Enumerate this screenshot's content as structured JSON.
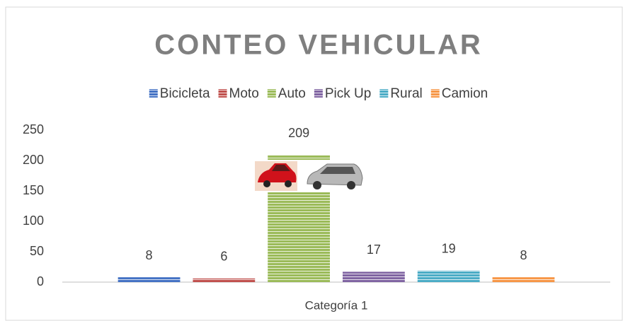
{
  "chart_data": {
    "type": "bar",
    "title": "CONTEO VEHICULAR",
    "categories": [
      "Categoría 1"
    ],
    "series": [
      {
        "name": "Bicicleta",
        "color": "#4472c4",
        "values": [
          8
        ]
      },
      {
        "name": "Moto",
        "color": "#c0504d",
        "values": [
          6
        ]
      },
      {
        "name": "Auto",
        "color": "#9bbb59",
        "values": [
          209
        ]
      },
      {
        "name": "Pick Up",
        "color": "#8064a2",
        "values": [
          17
        ]
      },
      {
        "name": "Rural",
        "color": "#4bacc6",
        "values": [
          19
        ]
      },
      {
        "name": "Camion",
        "color": "#f79646",
        "values": [
          8
        ]
      }
    ],
    "ylim": [
      0,
      250
    ],
    "yticks": [
      0,
      50,
      100,
      150,
      200,
      250
    ],
    "grid": false,
    "legend": "top"
  }
}
